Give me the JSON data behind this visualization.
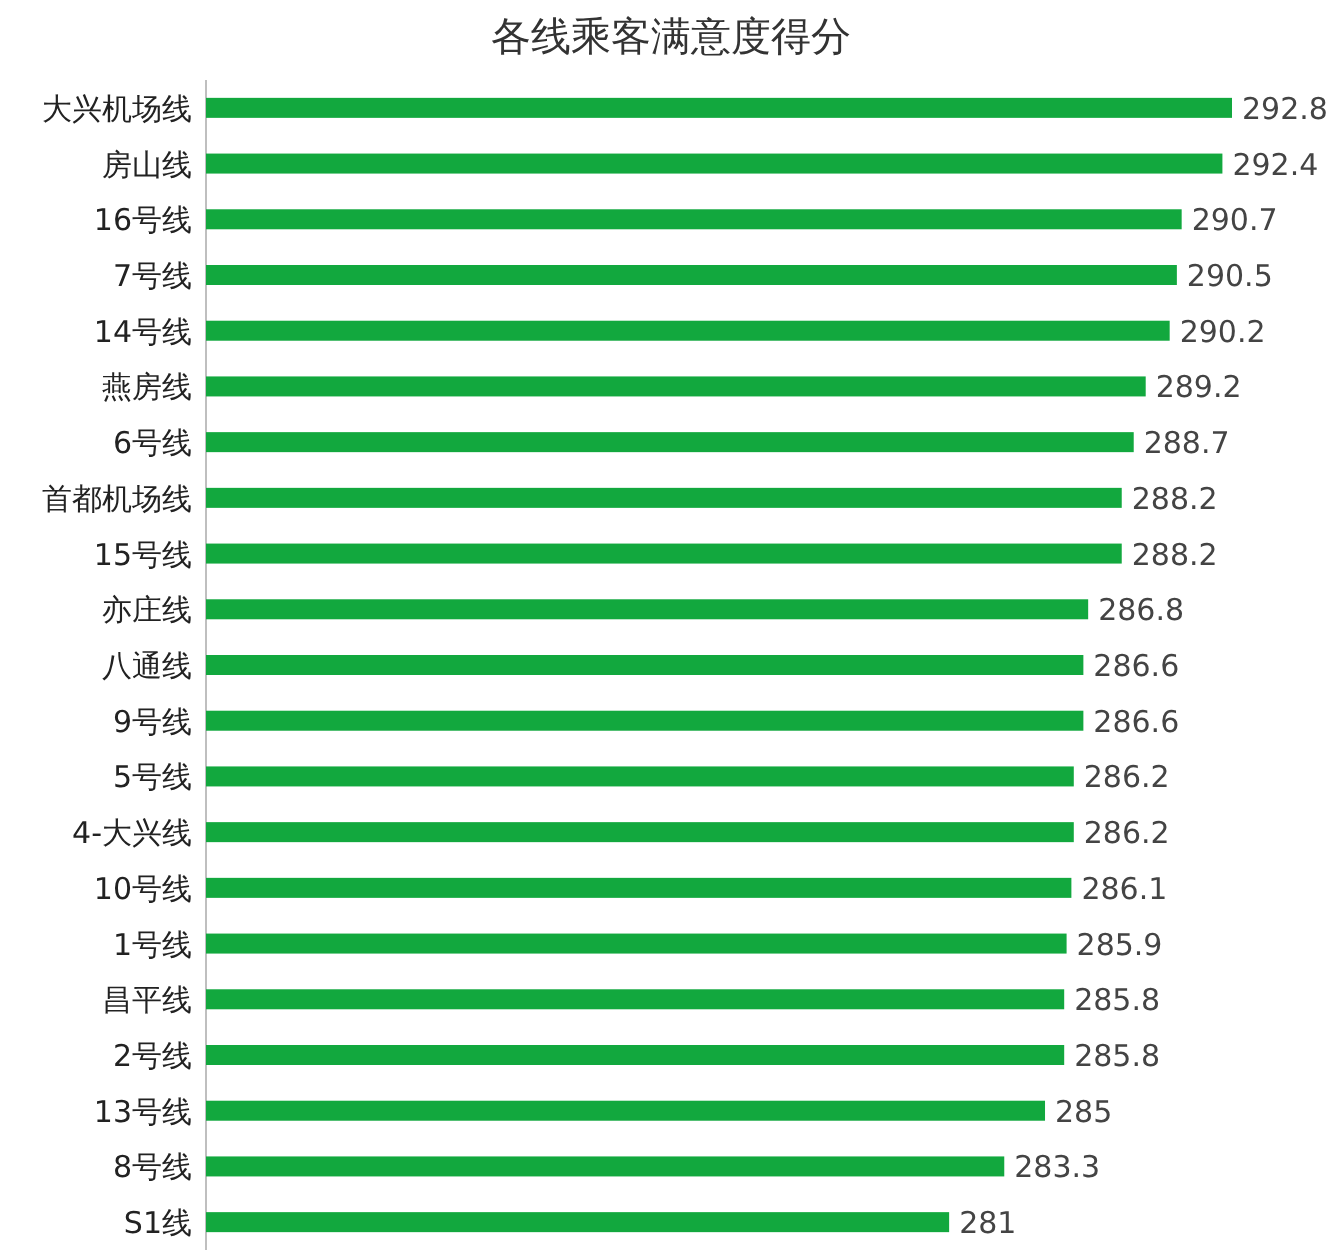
{
  "chart_data": {
    "type": "bar",
    "orientation": "horizontal",
    "title": "各线乘客满意度得分",
    "categories": [
      "大兴机场线",
      "房山线",
      "16号线",
      "7号线",
      "14号线",
      "燕房线",
      "6号线",
      "首都机场线",
      "15号线",
      "亦庄线",
      "八通线",
      "9号线",
      "5号线",
      "4-大兴线",
      "10号线",
      "1号线",
      "昌平线",
      "2号线",
      "13号线",
      "8号线",
      "S1线"
    ],
    "values": [
      292.8,
      292.4,
      290.7,
      290.5,
      290.2,
      289.2,
      288.7,
      288.2,
      288.2,
      286.8,
      286.6,
      286.6,
      286.2,
      286.2,
      286.1,
      285.9,
      285.8,
      285.8,
      285,
      283.3,
      281
    ],
    "color": "#12a83e",
    "xlim": [
      250,
      292.8
    ],
    "data_labels": true,
    "tick_labels": "y"
  }
}
